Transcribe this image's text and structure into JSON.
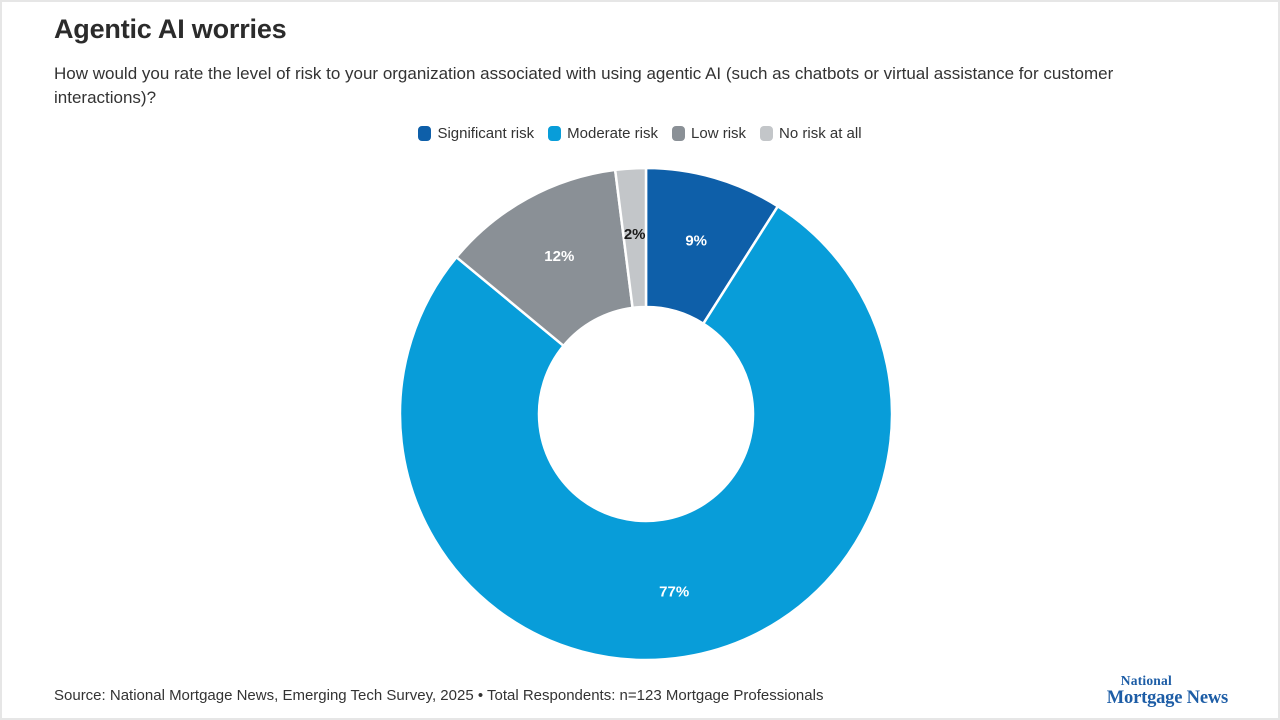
{
  "header": {
    "title": "Agentic AI worries",
    "subtitle": "How would you rate the level of risk to your organization associated with using agentic AI (such as chatbots or virtual assistance for customer interactions)?"
  },
  "chart_data": {
    "type": "pie",
    "subtype": "donut",
    "title": "Agentic AI worries",
    "categories": [
      "Significant risk",
      "Moderate risk",
      "Low risk",
      "No risk at all"
    ],
    "values": [
      9,
      77,
      12,
      2
    ],
    "data_labels": [
      "9%",
      "77%",
      "12%",
      "2%"
    ],
    "colors": [
      "#0e5fa9",
      "#089dd9",
      "#8a9096",
      "#c3c6c9"
    ],
    "data_label_colors": [
      "#ffffff",
      "#ffffff",
      "#ffffff",
      "#1a1a1a"
    ],
    "start_angle_deg": 0,
    "direction": "clockwise",
    "inner_radius_ratio": 0.435,
    "legend_position": "top",
    "separator_color": "#ffffff"
  },
  "footer": {
    "source": "Source: National Mortgage News, Emerging Tech Survey, 2025 • Total Respondents: n=123 Mortgage Professionals",
    "logo_line1": "National",
    "logo_line2": "Mortgage News"
  }
}
